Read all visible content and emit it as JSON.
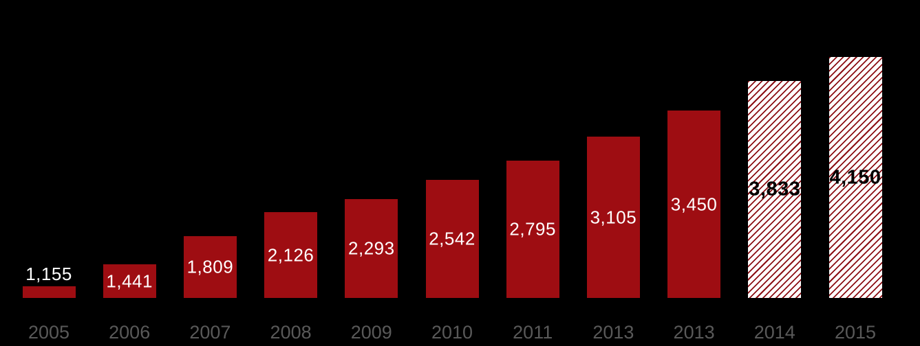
{
  "chart_data": {
    "type": "bar",
    "title": "",
    "xlabel": "",
    "ylabel": "",
    "categories": [
      "2005",
      "2006",
      "2007",
      "2008",
      "2009",
      "2010",
      "2011",
      "2013",
      "2013",
      "2014",
      "2015"
    ],
    "series": [
      {
        "name": "value",
        "values": [
          1155,
          1441,
          1809,
          2126,
          2293,
          2542,
          2795,
          3105,
          3450,
          3833,
          4150
        ]
      }
    ],
    "value_labels": [
      "1,155",
      "1,441",
      "1,809",
      "2,126",
      "2,293",
      "2,542",
      "2,795",
      "3,105",
      "3,450",
      "3,833",
      "4,150"
    ],
    "bar_styles": [
      "solid",
      "solid",
      "solid",
      "solid",
      "solid",
      "solid",
      "solid",
      "solid",
      "solid",
      "hatched",
      "hatched"
    ],
    "ylim": [
      1000,
      4900
    ],
    "grid": false,
    "legend": "none",
    "axis_lines": "none",
    "label_position": "inside-center; first bar label outside above bar",
    "notes": "x-axis label 2013 appears twice in the source image (positions 8 and 9); last two bars use diagonal red-on-white hatch fill",
    "colors": {
      "background": "#000000",
      "bar_solid": "#9E0D12",
      "hatch_line": "#8B0E13",
      "hatch_background": "#FFFFFF",
      "label_on_solid": "#FFFFFF",
      "label_on_hatch": "#000000",
      "axis_label": "#595959"
    }
  }
}
